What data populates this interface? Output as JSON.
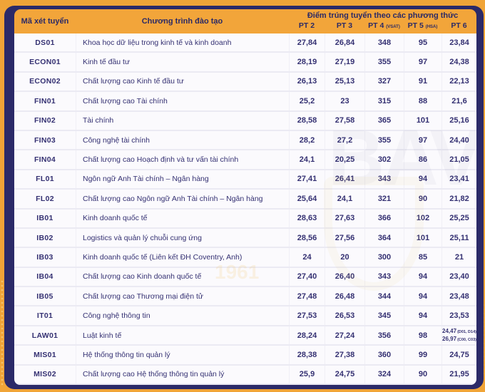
{
  "colors": {
    "page_background": "#F0A437",
    "panel_navy": "#2B2A68",
    "header_orange": "#F2A53A",
    "header_text": "#2B2A66",
    "body_text": "#343072",
    "row_background": "#FBFAFD",
    "separator": "#EBEAF3"
  },
  "watermark": {
    "text": "BAV",
    "year": "1961"
  },
  "table": {
    "header": {
      "code": "Mã xét tuyển",
      "program": "Chương trình đào tạo",
      "scores_title": "Điểm trúng tuyển theo các phương thức",
      "pt2": "PT 2",
      "pt3": "PT 3",
      "pt4": {
        "label": "PT 4 ",
        "sub": "(VSAT)"
      },
      "pt5": {
        "label": "PT 5 ",
        "sub": "(HSA)"
      },
      "pt6": "PT 6"
    },
    "rows": [
      {
        "code": "DS01",
        "program": "Khoa học dữ liệu trong kinh tế và kinh doanh",
        "scores": [
          "27,84",
          "26,84",
          "348",
          "95",
          "23,84"
        ]
      },
      {
        "code": "ECON01",
        "program": "Kinh tế đầu tư",
        "scores": [
          "28,19",
          "27,19",
          "355",
          "97",
          "24,38"
        ]
      },
      {
        "code": "ECON02",
        "program": "Chất lượng cao Kinh tế đầu tư",
        "scores": [
          "26,13",
          "25,13",
          "327",
          "91",
          "22,13"
        ]
      },
      {
        "code": "FIN01",
        "program": "Chất lượng cao Tài chính",
        "scores": [
          "25,2",
          "23",
          "315",
          "88",
          "21,6"
        ]
      },
      {
        "code": "FIN02",
        "program": "Tài chính",
        "scores": [
          "28,58",
          "27,58",
          "365",
          "101",
          "25,16"
        ]
      },
      {
        "code": "FIN03",
        "program": "Công nghệ tài chính",
        "scores": [
          "28,2",
          "27,2",
          "355",
          "97",
          "24,40"
        ]
      },
      {
        "code": "FIN04",
        "program": "Chất lượng cao Hoạch định và tư vấn tài chính",
        "scores": [
          "24,1",
          "20,25",
          "302",
          "86",
          "21,05"
        ]
      },
      {
        "code": "FL01",
        "program": "Ngôn ngữ Anh Tài chính – Ngân hàng",
        "scores": [
          "27,41",
          "26,41",
          "343",
          "94",
          "23,41"
        ]
      },
      {
        "code": "FL02",
        "program": "Chất lượng cao Ngôn ngữ Anh Tài chính – Ngân hàng",
        "scores": [
          "25,64",
          "24,1",
          "321",
          "90",
          "21,82"
        ]
      },
      {
        "code": "IB01",
        "program": "Kinh doanh quốc tế",
        "scores": [
          "28,63",
          "27,63",
          "366",
          "102",
          "25,25"
        ]
      },
      {
        "code": "IB02",
        "program": "Logistics và quản lý chuỗi cung ứng",
        "scores": [
          "28,56",
          "27,56",
          "364",
          "101",
          "25,11"
        ]
      },
      {
        "code": "IB03",
        "program": "Kinh doanh quốc tế (Liên kết ĐH Coventry, Anh)",
        "scores": [
          "24",
          "20",
          "300",
          "85",
          "21"
        ]
      },
      {
        "code": "IB04",
        "program": "Chất lượng cao Kinh doanh quốc tế",
        "scores": [
          "27,40",
          "26,40",
          "343",
          "94",
          "23,40"
        ]
      },
      {
        "code": "IB05",
        "program": "Chất lượng cao Thương mại điện tử",
        "scores": [
          "27,48",
          "26,48",
          "344",
          "94",
          "23,48"
        ]
      },
      {
        "code": "IT01",
        "program": "Công nghệ thông tin",
        "scores": [
          "27,53",
          "26,53",
          "345",
          "94",
          "23,53"
        ]
      },
      {
        "code": "LAW01",
        "program": "Luật kinh tế",
        "scores": [
          "28,24",
          "27,24",
          "356",
          "98",
          {
            "lines": [
              {
                "value": "24,47",
                "note": "(D01, D14)"
              },
              {
                "value": "26,97",
                "note": "(C00, C03)"
              }
            ]
          }
        ]
      },
      {
        "code": "MIS01",
        "program": "Hệ thống thông tin quản lý",
        "scores": [
          "28,38",
          "27,38",
          "360",
          "99",
          "24,75"
        ]
      },
      {
        "code": "MIS02",
        "program": "Chất lượng cao Hệ thống thông tin quản lý",
        "scores": [
          "25,9",
          "24,75",
          "324",
          "90",
          "21,95"
        ]
      }
    ]
  }
}
